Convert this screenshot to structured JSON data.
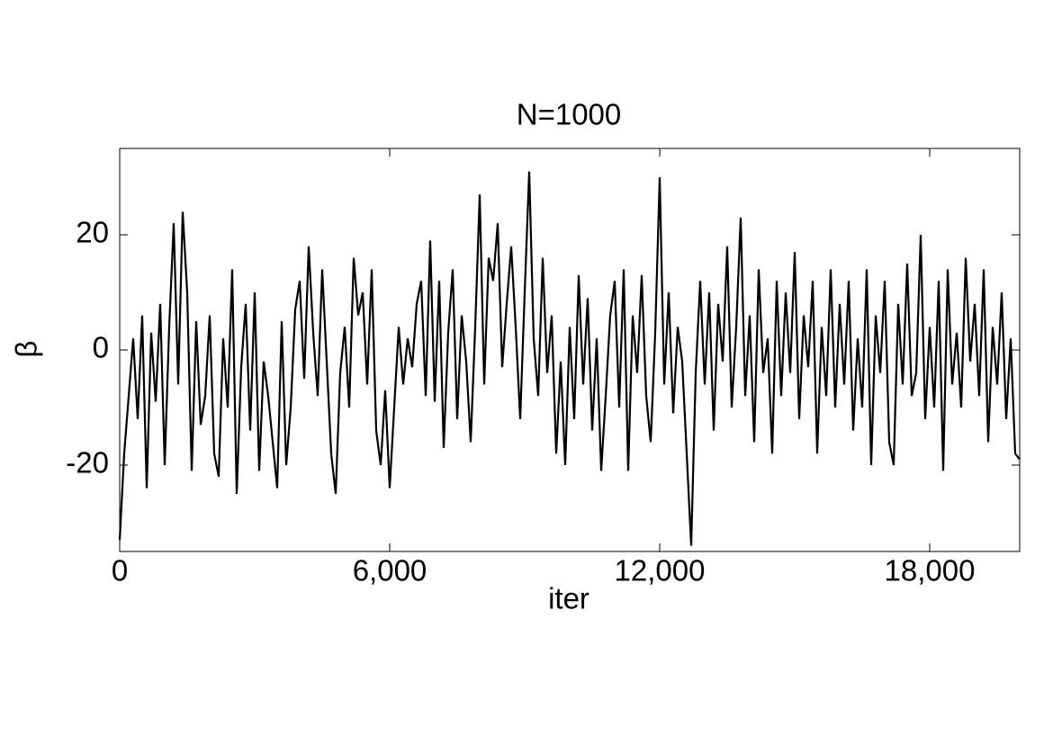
{
  "chart_data": {
    "type": "line",
    "title": "N=1000",
    "x_label": "iter",
    "y_label": "β",
    "color": "#000000",
    "xlim": [
      0,
      20000
    ],
    "xticks": [
      0,
      {
        "value": 6000,
        "label": "6,000"
      },
      {
        "value": 12000,
        "label": "12,000"
      },
      {
        "value": 18000,
        "label": "18,000"
      }
    ],
    "ylim": [
      -35,
      35
    ],
    "yticks": [
      -20,
      0,
      20
    ],
    "x": [
      0,
      100,
      200,
      300,
      400,
      500,
      600,
      700,
      800,
      900,
      1000,
      1100,
      1200,
      1300,
      1400,
      1500,
      1600,
      1700,
      1800,
      1900,
      2000,
      2100,
      2200,
      2300,
      2400,
      2500,
      2600,
      2700,
      2800,
      2900,
      3000,
      3100,
      3200,
      3300,
      3400,
      3500,
      3600,
      3700,
      3800,
      3900,
      4000,
      4100,
      4200,
      4300,
      4400,
      4500,
      4600,
      4700,
      4800,
      4900,
      5000,
      5100,
      5200,
      5300,
      5400,
      5500,
      5600,
      5700,
      5800,
      5900,
      6000,
      6100,
      6200,
      6300,
      6400,
      6500,
      6600,
      6700,
      6800,
      6900,
      7000,
      7100,
      7200,
      7300,
      7400,
      7500,
      7600,
      7700,
      7800,
      7900,
      8000,
      8100,
      8200,
      8300,
      8400,
      8500,
      8600,
      8700,
      8800,
      8900,
      9000,
      9100,
      9200,
      9300,
      9400,
      9500,
      9600,
      9700,
      9800,
      9900,
      10000,
      10100,
      10200,
      10300,
      10400,
      10500,
      10600,
      10700,
      10800,
      10900,
      11000,
      11100,
      11200,
      11300,
      11400,
      11500,
      11600,
      11700,
      11800,
      11900,
      12000,
      12100,
      12200,
      12300,
      12400,
      12500,
      12600,
      12700,
      12800,
      12900,
      13000,
      13100,
      13200,
      13300,
      13400,
      13500,
      13600,
      13700,
      13800,
      13900,
      14000,
      14100,
      14200,
      14300,
      14400,
      14500,
      14600,
      14700,
      14800,
      14900,
      15000,
      15100,
      15200,
      15300,
      15400,
      15500,
      15600,
      15700,
      15800,
      15900,
      16000,
      16100,
      16200,
      16300,
      16400,
      16500,
      16600,
      16700,
      16800,
      16900,
      17000,
      17100,
      17200,
      17300,
      17400,
      17500,
      17600,
      17700,
      17800,
      17900,
      18000,
      18100,
      18200,
      18300,
      18400,
      18500,
      18600,
      18700,
      18800,
      18900,
      19000,
      19100,
      19200,
      19300,
      19400,
      19500,
      19600,
      19700,
      19800,
      19900,
      20000
    ],
    "values": [
      -33,
      -18,
      -8,
      2,
      -12,
      6,
      -24,
      3,
      -9,
      8,
      -20,
      4,
      22,
      -6,
      24,
      10,
      -21,
      5,
      -13,
      -8,
      6,
      -18,
      -22,
      2,
      -10,
      14,
      -25,
      -3,
      8,
      -14,
      10,
      -21,
      -2,
      -8,
      -16,
      -24,
      5,
      -20,
      -10,
      7,
      12,
      -5,
      18,
      3,
      -8,
      14,
      -2,
      -18,
      -25,
      -4,
      4,
      -10,
      16,
      6,
      10,
      -6,
      14,
      -14,
      -20,
      -7,
      -24,
      -10,
      4,
      -6,
      2,
      -3,
      8,
      12,
      -8,
      19,
      -9,
      12,
      -17,
      3,
      14,
      -12,
      6,
      -2,
      -16,
      4,
      27,
      -6,
      16,
      12,
      22,
      -3,
      8,
      18,
      4,
      -12,
      10,
      31,
      2,
      -8,
      16,
      -4,
      6,
      -18,
      -2,
      -20,
      4,
      -12,
      13,
      -6,
      9,
      -14,
      2,
      -21,
      -8,
      6,
      12,
      -10,
      14,
      -21,
      6,
      -4,
      13,
      -8,
      -16,
      3,
      30,
      -6,
      10,
      -11,
      4,
      -2,
      -18,
      -34,
      -4,
      12,
      -6,
      10,
      -14,
      8,
      -2,
      18,
      -10,
      4,
      23,
      -8,
      6,
      -16,
      14,
      -4,
      2,
      -18,
      12,
      -8,
      10,
      -4,
      17,
      -12,
      6,
      -3,
      12,
      -18,
      4,
      -8,
      14,
      -10,
      8,
      -6,
      12,
      -14,
      2,
      -10,
      14,
      -20,
      6,
      -4,
      12,
      -16,
      -20,
      8,
      -6,
      15,
      -8,
      -4,
      20,
      -12,
      4,
      -10,
      12,
      -21,
      14,
      -6,
      3,
      -10,
      16,
      -2,
      8,
      -8,
      14,
      -16,
      4,
      -6,
      10,
      -12,
      2,
      -18,
      -19
    ]
  }
}
